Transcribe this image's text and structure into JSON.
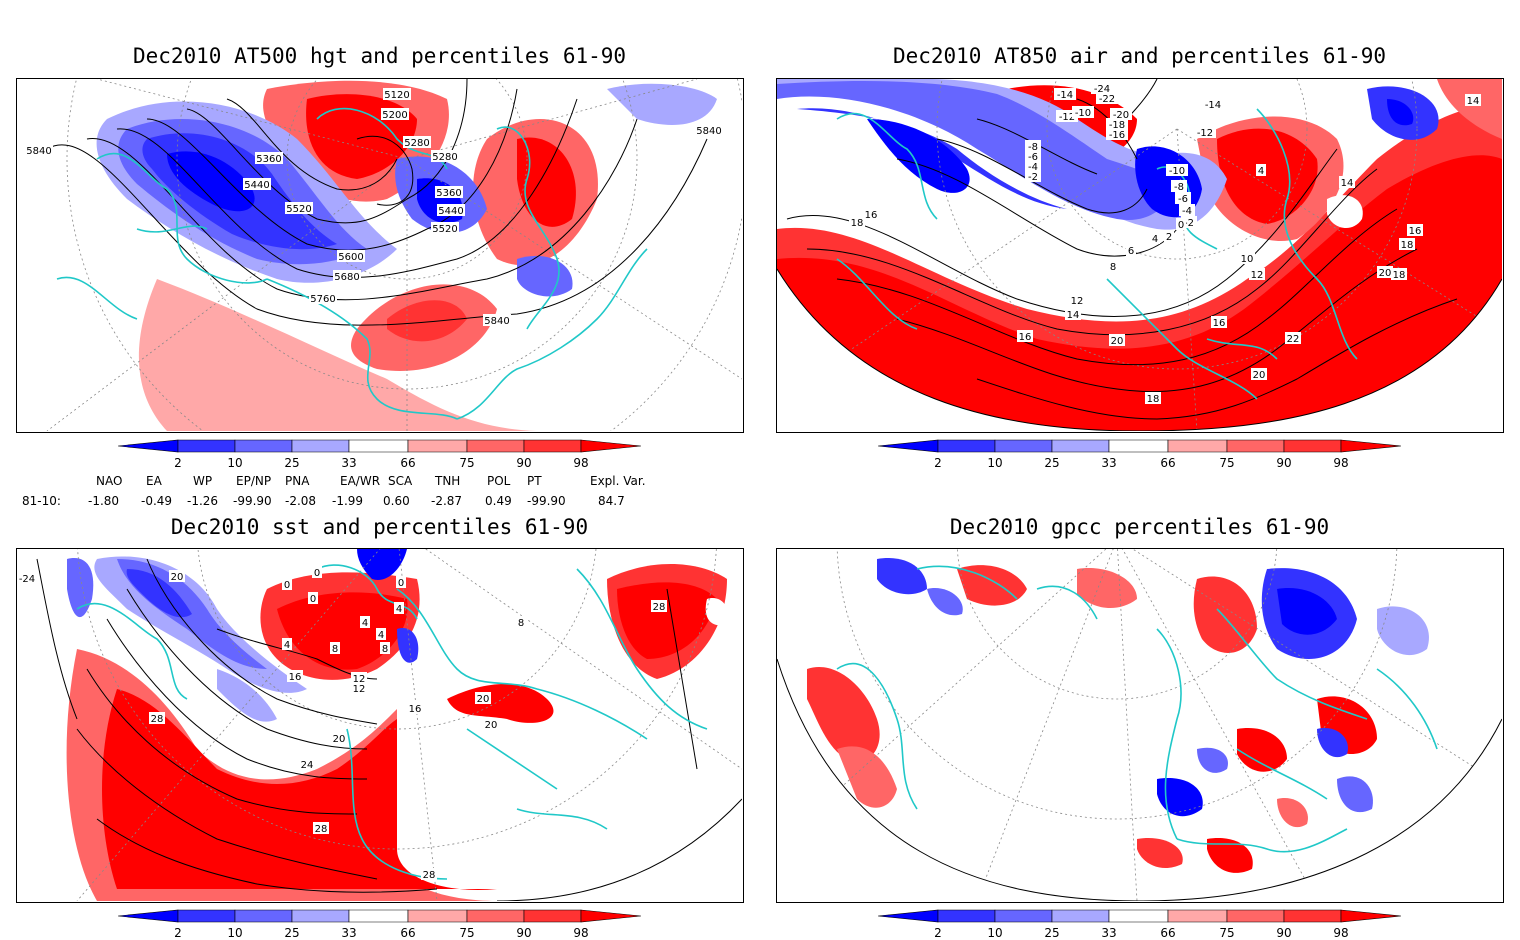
{
  "panels": [
    {
      "title": "Dec2010 AT500 hgt and percentiles 61-90",
      "contour_labels": [
        "5840",
        "5120",
        "5200",
        "5280",
        "5280",
        "5360",
        "5360",
        "5440",
        "5440",
        "5520",
        "5520",
        "5600",
        "5680",
        "5760",
        "5840",
        "5840"
      ]
    },
    {
      "title": "Dec2010 AT850 air and percentiles 61-90",
      "contour_labels": [
        "-24",
        "-22",
        "-14",
        "-14",
        "-12",
        "-12",
        "-10",
        "-20",
        "-18",
        "-16",
        "-8",
        "-6",
        "-4",
        "-2",
        "-10",
        "-8",
        "-6",
        "-4",
        "-2",
        "0",
        "2",
        "4",
        "6",
        "8",
        "10",
        "12",
        "12",
        "14",
        "14",
        "14",
        "16",
        "16",
        "16",
        "16",
        "18",
        "18",
        "18",
        "18",
        "20",
        "20",
        "20",
        "22",
        "4"
      ]
    },
    {
      "title": "Dec2010 sst and percentiles 61-90",
      "contour_labels": [
        "-24",
        "20",
        "0",
        "0",
        "0",
        "0",
        "4",
        "4",
        "4",
        "8",
        "8",
        "4",
        "16",
        "12",
        "12",
        "16",
        "20",
        "20",
        "20",
        "24",
        "28",
        "28",
        "28",
        "28",
        "8"
      ]
    },
    {
      "title": "Dec2010 gpcc percentiles 61-90",
      "contour_labels": []
    }
  ],
  "colorbar": {
    "ticks": [
      "2",
      "10",
      "25",
      "33",
      "66",
      "75",
      "90",
      "98"
    ],
    "colors": [
      "#0000ff",
      "#3333ff",
      "#6666ff",
      "#a8a8ff",
      "#ffffff",
      "#ffa8a8",
      "#ff6666",
      "#ff3333",
      "#ff0000"
    ]
  },
  "indices": {
    "headers": [
      "NAO",
      "EA",
      "WP",
      "EP/NP",
      "PNA",
      "EA/WR",
      "SCA",
      "TNH",
      "POL",
      "PT",
      "Expl. Var."
    ],
    "row_label": "81-10:",
    "values": [
      "-1.80",
      "-0.49",
      "-1.26",
      "-99.90",
      "-2.08",
      "-1.99",
      "0.60",
      "-2.87",
      "0.49",
      "-99.90",
      "84.7"
    ]
  },
  "colors": {
    "coast": "#20c8c8",
    "contour": "#000000"
  }
}
